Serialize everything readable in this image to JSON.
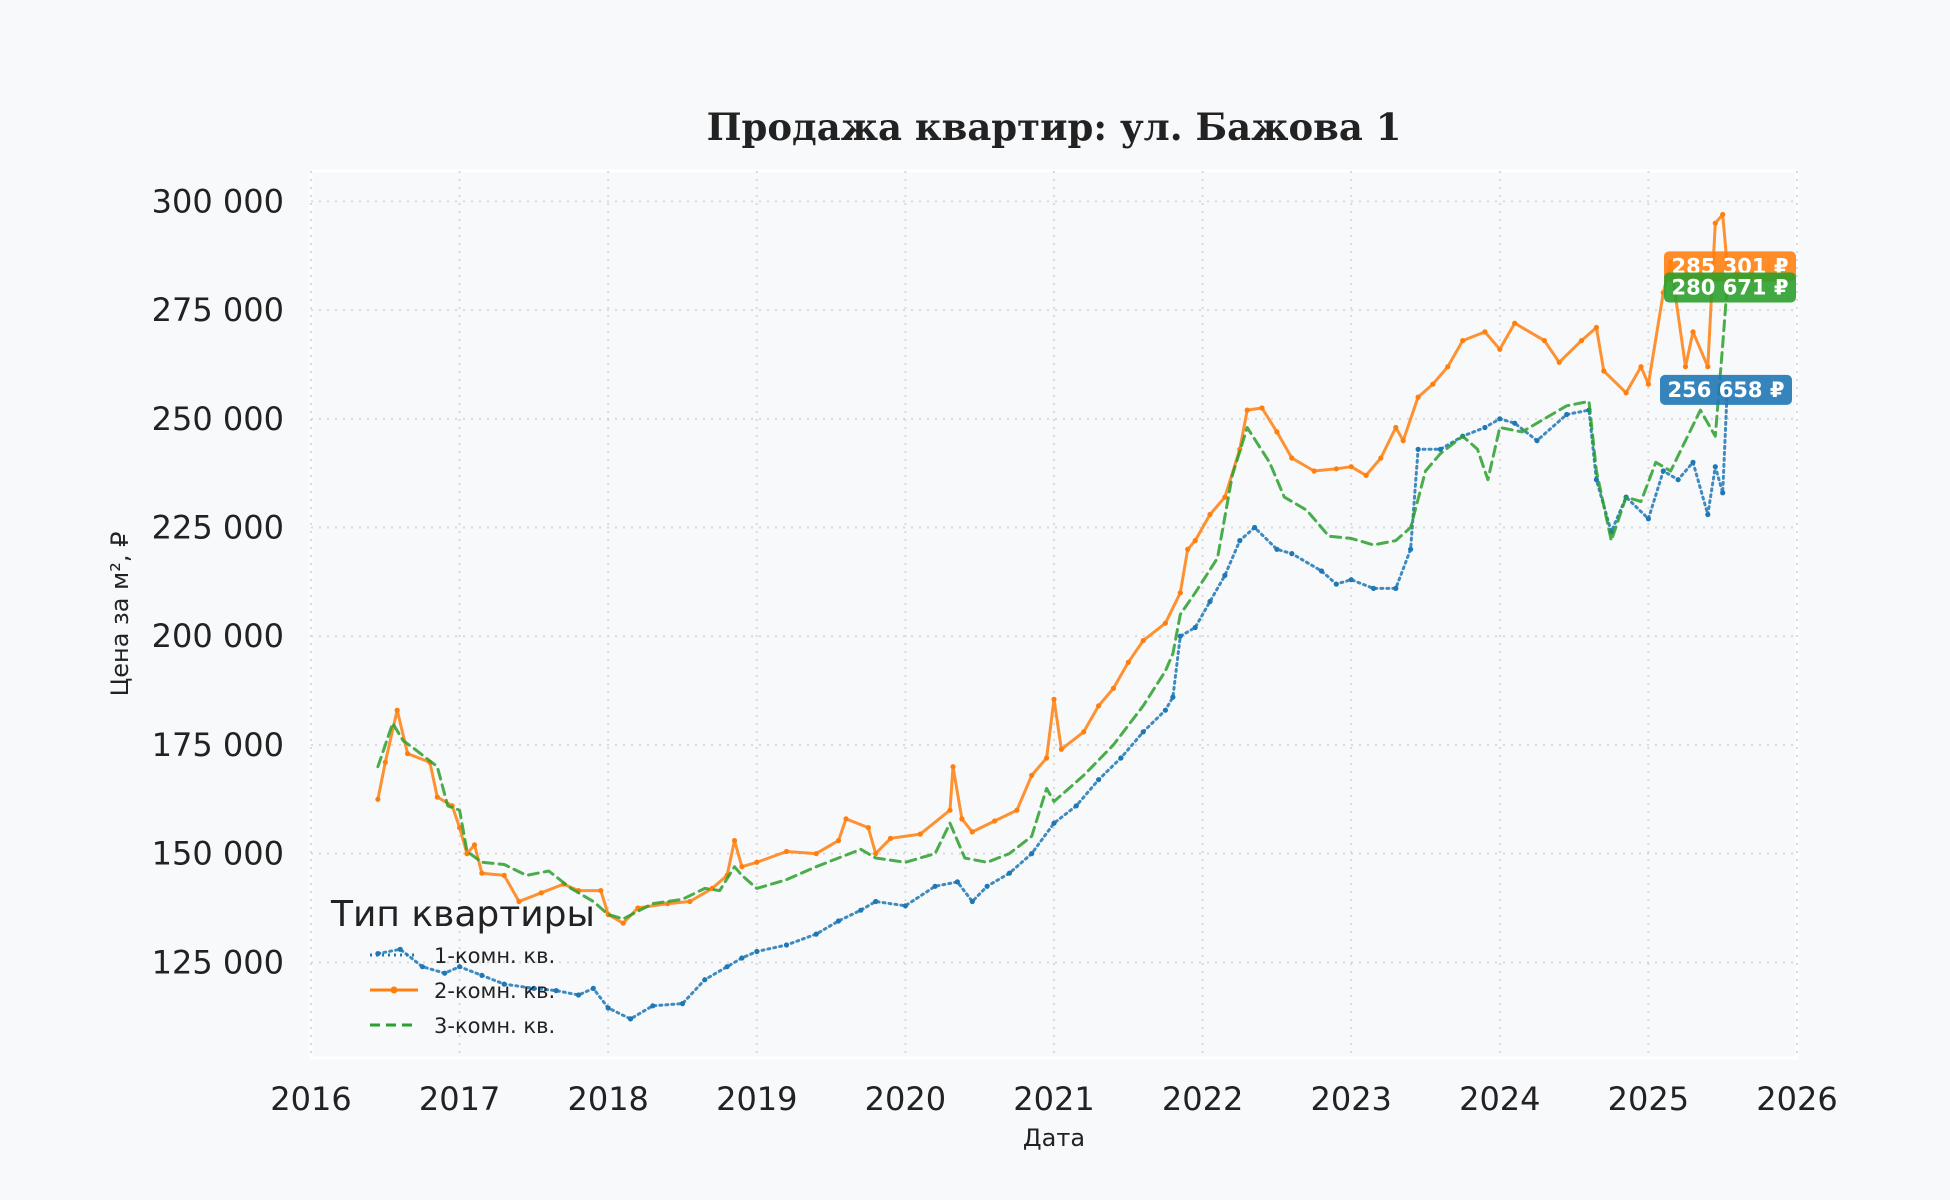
{
  "chart_data": {
    "type": "line",
    "title": "Продажа квартир: ул. Бажова 1",
    "xlabel": "Дата",
    "ylabel": "Цена за м², ₽",
    "xlim": [
      2016,
      2026
    ],
    "ylim": [
      103000,
      307000
    ],
    "x_ticks": [
      2016,
      2017,
      2018,
      2019,
      2020,
      2021,
      2022,
      2023,
      2024,
      2025,
      2026
    ],
    "y_ticks": [
      125000,
      150000,
      175000,
      200000,
      225000,
      250000,
      275000,
      300000
    ],
    "y_tick_labels": [
      "125 000",
      "150 000",
      "175 000",
      "200 000",
      "225 000",
      "250 000",
      "275 000",
      "300 000"
    ],
    "grid": true,
    "legend": {
      "title": "Тип квартиры",
      "position": "lower-left"
    },
    "series": [
      {
        "name": "1-комн. кв.",
        "color": "#1f77b4",
        "style": "dotted",
        "end_label": "256 658 ₽",
        "points": [
          [
            2016.45,
            127000
          ],
          [
            2016.6,
            128000
          ],
          [
            2016.75,
            124000
          ],
          [
            2016.9,
            122500
          ],
          [
            2017.0,
            124000
          ],
          [
            2017.15,
            122000
          ],
          [
            2017.3,
            120000
          ],
          [
            2017.5,
            119000
          ],
          [
            2017.65,
            118500
          ],
          [
            2017.8,
            117500
          ],
          [
            2017.9,
            119000
          ],
          [
            2018.0,
            114500
          ],
          [
            2018.15,
            112000
          ],
          [
            2018.3,
            115000
          ],
          [
            2018.5,
            115500
          ],
          [
            2018.65,
            121000
          ],
          [
            2018.8,
            124000
          ],
          [
            2018.9,
            126000
          ],
          [
            2019.0,
            127500
          ],
          [
            2019.2,
            129000
          ],
          [
            2019.4,
            131500
          ],
          [
            2019.55,
            134500
          ],
          [
            2019.7,
            137000
          ],
          [
            2019.8,
            139000
          ],
          [
            2020.0,
            138000
          ],
          [
            2020.2,
            142500
          ],
          [
            2020.35,
            143500
          ],
          [
            2020.45,
            139000
          ],
          [
            2020.55,
            142500
          ],
          [
            2020.7,
            145500
          ],
          [
            2020.85,
            150000
          ],
          [
            2021.0,
            157000
          ],
          [
            2021.15,
            161000
          ],
          [
            2021.3,
            167000
          ],
          [
            2021.45,
            172000
          ],
          [
            2021.6,
            178000
          ],
          [
            2021.75,
            183000
          ],
          [
            2021.8,
            186000
          ],
          [
            2021.85,
            200000
          ],
          [
            2021.95,
            202000
          ],
          [
            2022.05,
            208000
          ],
          [
            2022.15,
            214000
          ],
          [
            2022.25,
            222000
          ],
          [
            2022.35,
            225000
          ],
          [
            2022.5,
            220000
          ],
          [
            2022.6,
            219000
          ],
          [
            2022.8,
            215000
          ],
          [
            2022.9,
            212000
          ],
          [
            2023.0,
            213000
          ],
          [
            2023.15,
            211000
          ],
          [
            2023.3,
            211000
          ],
          [
            2023.4,
            220000
          ],
          [
            2023.45,
            243000
          ],
          [
            2023.6,
            243000
          ],
          [
            2023.75,
            246000
          ],
          [
            2023.9,
            248000
          ],
          [
            2024.0,
            250000
          ],
          [
            2024.1,
            249000
          ],
          [
            2024.25,
            245000
          ],
          [
            2024.45,
            251000
          ],
          [
            2024.6,
            252000
          ],
          [
            2024.65,
            236000
          ],
          [
            2024.75,
            224000
          ],
          [
            2024.85,
            232000
          ],
          [
            2025.0,
            227000
          ],
          [
            2025.1,
            238000
          ],
          [
            2025.2,
            236000
          ],
          [
            2025.3,
            240000
          ],
          [
            2025.4,
            228000
          ],
          [
            2025.45,
            239000
          ],
          [
            2025.5,
            233000
          ],
          [
            2025.53,
            256658
          ]
        ]
      },
      {
        "name": "2-комн. кв.",
        "color": "#ff7f0e",
        "style": "solid",
        "end_label": "285 301 ₽",
        "points": [
          [
            2016.45,
            162500
          ],
          [
            2016.5,
            171000
          ],
          [
            2016.58,
            183000
          ],
          [
            2016.65,
            173000
          ],
          [
            2016.8,
            171000
          ],
          [
            2016.85,
            163000
          ],
          [
            2016.95,
            161000
          ],
          [
            2017.0,
            156000
          ],
          [
            2017.05,
            150000
          ],
          [
            2017.1,
            152000
          ],
          [
            2017.15,
            145500
          ],
          [
            2017.3,
            145000
          ],
          [
            2017.4,
            139000
          ],
          [
            2017.55,
            141000
          ],
          [
            2017.7,
            143000
          ],
          [
            2017.8,
            141500
          ],
          [
            2017.95,
            141500
          ],
          [
            2018.0,
            136000
          ],
          [
            2018.1,
            134000
          ],
          [
            2018.2,
            137500
          ],
          [
            2018.4,
            138500
          ],
          [
            2018.55,
            139000
          ],
          [
            2018.7,
            142000
          ],
          [
            2018.8,
            145000
          ],
          [
            2018.85,
            153000
          ],
          [
            2018.9,
            147000
          ],
          [
            2019.0,
            148000
          ],
          [
            2019.2,
            150500
          ],
          [
            2019.4,
            150000
          ],
          [
            2019.55,
            153000
          ],
          [
            2019.6,
            158000
          ],
          [
            2019.75,
            156000
          ],
          [
            2019.8,
            150000
          ],
          [
            2019.9,
            153500
          ],
          [
            2020.1,
            154500
          ],
          [
            2020.3,
            160000
          ],
          [
            2020.32,
            170000
          ],
          [
            2020.38,
            158000
          ],
          [
            2020.45,
            155000
          ],
          [
            2020.6,
            157500
          ],
          [
            2020.75,
            160000
          ],
          [
            2020.85,
            168000
          ],
          [
            2020.95,
            172000
          ],
          [
            2021.0,
            185500
          ],
          [
            2021.05,
            174000
          ],
          [
            2021.2,
            178000
          ],
          [
            2021.3,
            184000
          ],
          [
            2021.4,
            188000
          ],
          [
            2021.5,
            194000
          ],
          [
            2021.6,
            199000
          ],
          [
            2021.75,
            203000
          ],
          [
            2021.85,
            210000
          ],
          [
            2021.9,
            220000
          ],
          [
            2021.95,
            222000
          ],
          [
            2022.05,
            228000
          ],
          [
            2022.15,
            232000
          ],
          [
            2022.25,
            243000
          ],
          [
            2022.3,
            252000
          ],
          [
            2022.4,
            252500
          ],
          [
            2022.5,
            247000
          ],
          [
            2022.6,
            241000
          ],
          [
            2022.75,
            238000
          ],
          [
            2022.9,
            238500
          ],
          [
            2023.0,
            239000
          ],
          [
            2023.1,
            237000
          ],
          [
            2023.2,
            241000
          ],
          [
            2023.3,
            248000
          ],
          [
            2023.35,
            245000
          ],
          [
            2023.45,
            255000
          ],
          [
            2023.55,
            258000
          ],
          [
            2023.65,
            262000
          ],
          [
            2023.75,
            268000
          ],
          [
            2023.9,
            270000
          ],
          [
            2024.0,
            266000
          ],
          [
            2024.1,
            272000
          ],
          [
            2024.3,
            268000
          ],
          [
            2024.4,
            263000
          ],
          [
            2024.55,
            268000
          ],
          [
            2024.65,
            271000
          ],
          [
            2024.7,
            261000
          ],
          [
            2024.85,
            256000
          ],
          [
            2024.95,
            262000
          ],
          [
            2025.0,
            258000
          ],
          [
            2025.1,
            279000
          ],
          [
            2025.15,
            286000
          ],
          [
            2025.25,
            262000
          ],
          [
            2025.3,
            270000
          ],
          [
            2025.4,
            262000
          ],
          [
            2025.45,
            295000
          ],
          [
            2025.5,
            297000
          ],
          [
            2025.53,
            285301
          ]
        ]
      },
      {
        "name": "3-комн. кв.",
        "color": "#2ca02c",
        "style": "dashed",
        "end_label": "280 671 ₽",
        "points": [
          [
            2016.45,
            170000
          ],
          [
            2016.55,
            180000
          ],
          [
            2016.62,
            176000
          ],
          [
            2016.7,
            174000
          ],
          [
            2016.85,
            170000
          ],
          [
            2016.92,
            161000
          ],
          [
            2017.0,
            160000
          ],
          [
            2017.05,
            150500
          ],
          [
            2017.15,
            148000
          ],
          [
            2017.3,
            147500
          ],
          [
            2017.45,
            145000
          ],
          [
            2017.6,
            146000
          ],
          [
            2017.75,
            142000
          ],
          [
            2017.9,
            139000
          ],
          [
            2018.0,
            136000
          ],
          [
            2018.1,
            135000
          ],
          [
            2018.3,
            138500
          ],
          [
            2018.5,
            139500
          ],
          [
            2018.65,
            142000
          ],
          [
            2018.75,
            141500
          ],
          [
            2018.85,
            147000
          ],
          [
            2018.9,
            145000
          ],
          [
            2019.0,
            142000
          ],
          [
            2019.2,
            144000
          ],
          [
            2019.4,
            147000
          ],
          [
            2019.55,
            149000
          ],
          [
            2019.7,
            151000
          ],
          [
            2019.8,
            149000
          ],
          [
            2020.0,
            148000
          ],
          [
            2020.2,
            150000
          ],
          [
            2020.3,
            157000
          ],
          [
            2020.4,
            149000
          ],
          [
            2020.55,
            148000
          ],
          [
            2020.7,
            150000
          ],
          [
            2020.85,
            154000
          ],
          [
            2020.95,
            165000
          ],
          [
            2021.0,
            162000
          ],
          [
            2021.2,
            168000
          ],
          [
            2021.4,
            175000
          ],
          [
            2021.6,
            184000
          ],
          [
            2021.75,
            192000
          ],
          [
            2021.8,
            196000
          ],
          [
            2021.85,
            205000
          ],
          [
            2021.95,
            210000
          ],
          [
            2022.1,
            218000
          ],
          [
            2022.2,
            237000
          ],
          [
            2022.3,
            248000
          ],
          [
            2022.45,
            240000
          ],
          [
            2022.55,
            232000
          ],
          [
            2022.7,
            229000
          ],
          [
            2022.85,
            223000
          ],
          [
            2023.0,
            222500
          ],
          [
            2023.15,
            221000
          ],
          [
            2023.3,
            222000
          ],
          [
            2023.4,
            225000
          ],
          [
            2023.5,
            238000
          ],
          [
            2023.6,
            242000
          ],
          [
            2023.75,
            246000
          ],
          [
            2023.85,
            243000
          ],
          [
            2023.92,
            236000
          ],
          [
            2024.0,
            248000
          ],
          [
            2024.15,
            247000
          ],
          [
            2024.3,
            250000
          ],
          [
            2024.45,
            253000
          ],
          [
            2024.6,
            254000
          ],
          [
            2024.65,
            238000
          ],
          [
            2024.75,
            222000
          ],
          [
            2024.85,
            232000
          ],
          [
            2024.95,
            231000
          ],
          [
            2025.05,
            240000
          ],
          [
            2025.15,
            238000
          ],
          [
            2025.25,
            245000
          ],
          [
            2025.35,
            252000
          ],
          [
            2025.45,
            246000
          ],
          [
            2025.5,
            267000
          ],
          [
            2025.53,
            280671
          ]
        ]
      }
    ]
  }
}
